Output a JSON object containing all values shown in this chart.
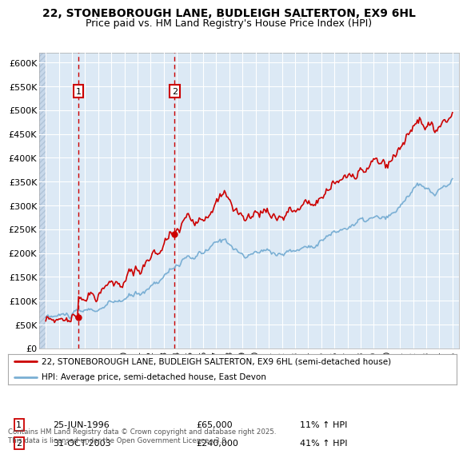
{
  "title_line1": "22, STONEBOROUGH LANE, BUDLEIGH SALTERTON, EX9 6HL",
  "title_line2": "Price paid vs. HM Land Registry's House Price Index (HPI)",
  "legend_line1": "22, STONEBOROUGH LANE, BUDLEIGH SALTERTON, EX9 6HL (semi-detached house)",
  "legend_line2": "HPI: Average price, semi-detached house, East Devon",
  "footer": "Contains HM Land Registry data © Crown copyright and database right 2025.\nThis data is licensed under the Open Government Licence v3.0.",
  "transaction1_date": "25-JUN-1996",
  "transaction1_price": "£65,000",
  "transaction1_hpi": "11% ↑ HPI",
  "transaction1_year": 1996.48,
  "transaction1_value": 65000,
  "transaction2_date": "31-OCT-2003",
  "transaction2_price": "£240,000",
  "transaction2_hpi": "41% ↑ HPI",
  "transaction2_year": 2003.83,
  "transaction2_value": 240000,
  "price_color": "#cc0000",
  "hpi_color": "#7aafd4",
  "background_color": "#dce9f5",
  "grid_color": "#ffffff",
  "ylim": [
    0,
    620000
  ],
  "yticks": [
    0,
    50000,
    100000,
    150000,
    200000,
    250000,
    300000,
    350000,
    400000,
    450000,
    500000,
    550000,
    600000
  ],
  "xlim_start": 1993.5,
  "xlim_end": 2025.5,
  "xticks": [
    1994,
    1995,
    1996,
    1997,
    1998,
    1999,
    2000,
    2001,
    2002,
    2003,
    2004,
    2005,
    2006,
    2007,
    2008,
    2009,
    2010,
    2011,
    2012,
    2013,
    2014,
    2015,
    2016,
    2017,
    2018,
    2019,
    2020,
    2021,
    2022,
    2023,
    2024,
    2025
  ]
}
